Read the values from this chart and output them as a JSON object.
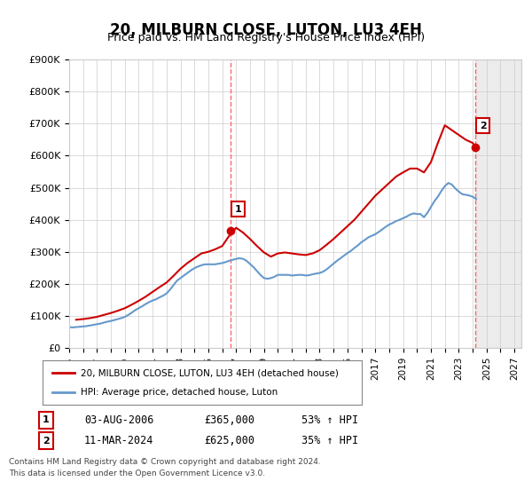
{
  "title": "20, MILBURN CLOSE, LUTON, LU3 4EH",
  "subtitle": "Price paid vs. HM Land Registry's House Price Index (HPI)",
  "ylabel_prefix": "£",
  "ylim": [
    0,
    900000
  ],
  "yticks": [
    0,
    100000,
    200000,
    300000,
    400000,
    500000,
    600000,
    700000,
    800000,
    900000
  ],
  "ytick_labels": [
    "£0",
    "£100K",
    "£200K",
    "£300K",
    "£400K",
    "£500K",
    "£600K",
    "£700K",
    "£800K",
    "£900K"
  ],
  "sale1_date": 2006.58,
  "sale1_price": 365000,
  "sale1_label": "1",
  "sale2_date": 2024.19,
  "sale2_price": 625000,
  "sale2_label": "2",
  "line1_color": "#cc0000",
  "line2_color": "#6699cc",
  "vline_color": "#ff6666",
  "annotation_box_color": "#cc0000",
  "grid_color": "#cccccc",
  "background_color": "#ffffff",
  "legend1_label": "20, MILBURN CLOSE, LUTON, LU3 4EH (detached house)",
  "legend2_label": "HPI: Average price, detached house, Luton",
  "note1": "1    03-AUG-2006         £365,000         53% ↑ HPI",
  "note2": "2    11-MAR-2024         £625,000         35% ↑ HPI",
  "footnote": "Contains HM Land Registry data © Crown copyright and database right 2024.\nThis data is licensed under the Open Government Licence v3.0.",
  "hpi_data_years": [
    1995.0,
    1995.25,
    1995.5,
    1995.75,
    1996.0,
    1996.25,
    1996.5,
    1996.75,
    1997.0,
    1997.25,
    1997.5,
    1997.75,
    1998.0,
    1998.25,
    1998.5,
    1998.75,
    1999.0,
    1999.25,
    1999.5,
    1999.75,
    2000.0,
    2000.25,
    2000.5,
    2000.75,
    2001.0,
    2001.25,
    2001.5,
    2001.75,
    2002.0,
    2002.25,
    2002.5,
    2002.75,
    2003.0,
    2003.25,
    2003.5,
    2003.75,
    2004.0,
    2004.25,
    2004.5,
    2004.75,
    2005.0,
    2005.25,
    2005.5,
    2005.75,
    2006.0,
    2006.25,
    2006.5,
    2006.75,
    2007.0,
    2007.25,
    2007.5,
    2007.75,
    2008.0,
    2008.25,
    2008.5,
    2008.75,
    2009.0,
    2009.25,
    2009.5,
    2009.75,
    2010.0,
    2010.25,
    2010.5,
    2010.75,
    2011.0,
    2011.25,
    2011.5,
    2011.75,
    2012.0,
    2012.25,
    2012.5,
    2012.75,
    2013.0,
    2013.25,
    2013.5,
    2013.75,
    2014.0,
    2014.25,
    2014.5,
    2014.75,
    2015.0,
    2015.25,
    2015.5,
    2015.75,
    2016.0,
    2016.25,
    2016.5,
    2016.75,
    2017.0,
    2017.25,
    2017.5,
    2017.75,
    2018.0,
    2018.25,
    2018.5,
    2018.75,
    2019.0,
    2019.25,
    2019.5,
    2019.75,
    2020.0,
    2020.25,
    2020.5,
    2020.75,
    2021.0,
    2021.25,
    2021.5,
    2021.75,
    2022.0,
    2022.25,
    2022.5,
    2022.75,
    2023.0,
    2023.25,
    2023.5,
    2023.75,
    2024.0,
    2024.25
  ],
  "hpi_values": [
    65000,
    64000,
    65000,
    66000,
    67000,
    68000,
    70000,
    72000,
    74000,
    76000,
    79000,
    82000,
    84000,
    87000,
    90000,
    93000,
    97000,
    103000,
    110000,
    118000,
    124000,
    130000,
    137000,
    143000,
    148000,
    152000,
    158000,
    163000,
    170000,
    182000,
    196000,
    210000,
    218000,
    226000,
    234000,
    242000,
    249000,
    254000,
    258000,
    261000,
    261000,
    261000,
    261000,
    263000,
    265000,
    268000,
    272000,
    275000,
    278000,
    280000,
    278000,
    272000,
    262000,
    252000,
    240000,
    228000,
    218000,
    216000,
    218000,
    222000,
    228000,
    228000,
    228000,
    228000,
    226000,
    227000,
    228000,
    228000,
    226000,
    227000,
    230000,
    232000,
    234000,
    238000,
    245000,
    254000,
    263000,
    272000,
    280000,
    288000,
    296000,
    303000,
    312000,
    320000,
    330000,
    337000,
    345000,
    350000,
    355000,
    362000,
    370000,
    378000,
    385000,
    390000,
    396000,
    400000,
    405000,
    410000,
    416000,
    420000,
    418000,
    418000,
    408000,
    422000,
    440000,
    458000,
    472000,
    490000,
    505000,
    515000,
    510000,
    498000,
    488000,
    480000,
    478000,
    476000,
    472000,
    465000
  ],
  "property_data_years": [
    1995.5,
    1996.0,
    1996.5,
    1997.0,
    1997.5,
    1998.0,
    1998.5,
    1999.0,
    1999.5,
    2000.0,
    2000.5,
    2001.0,
    2001.5,
    2002.0,
    2002.5,
    2003.0,
    2003.5,
    2004.0,
    2004.5,
    2005.0,
    2005.5,
    2006.0,
    2006.5,
    2007.0,
    2007.5,
    2008.0,
    2008.5,
    2009.0,
    2009.5,
    2010.0,
    2010.5,
    2011.0,
    2011.5,
    2012.0,
    2012.5,
    2013.0,
    2013.5,
    2014.0,
    2014.5,
    2015.0,
    2015.5,
    2016.0,
    2016.5,
    2017.0,
    2017.5,
    2018.0,
    2018.5,
    2019.0,
    2019.5,
    2020.0,
    2020.5,
    2021.0,
    2021.5,
    2022.0,
    2022.5,
    2023.0,
    2023.5,
    2024.0,
    2024.25
  ],
  "property_values": [
    88000,
    90000,
    93000,
    97000,
    103000,
    109000,
    116000,
    124000,
    135000,
    147000,
    160000,
    175000,
    190000,
    204000,
    225000,
    247000,
    265000,
    280000,
    295000,
    300000,
    308000,
    318000,
    350000,
    375000,
    360000,
    340000,
    318000,
    298000,
    285000,
    295000,
    298000,
    295000,
    292000,
    290000,
    295000,
    305000,
    322000,
    340000,
    360000,
    380000,
    400000,
    425000,
    450000,
    475000,
    495000,
    515000,
    535000,
    548000,
    560000,
    560000,
    548000,
    580000,
    640000,
    695000,
    680000,
    665000,
    650000,
    640000,
    625000
  ]
}
